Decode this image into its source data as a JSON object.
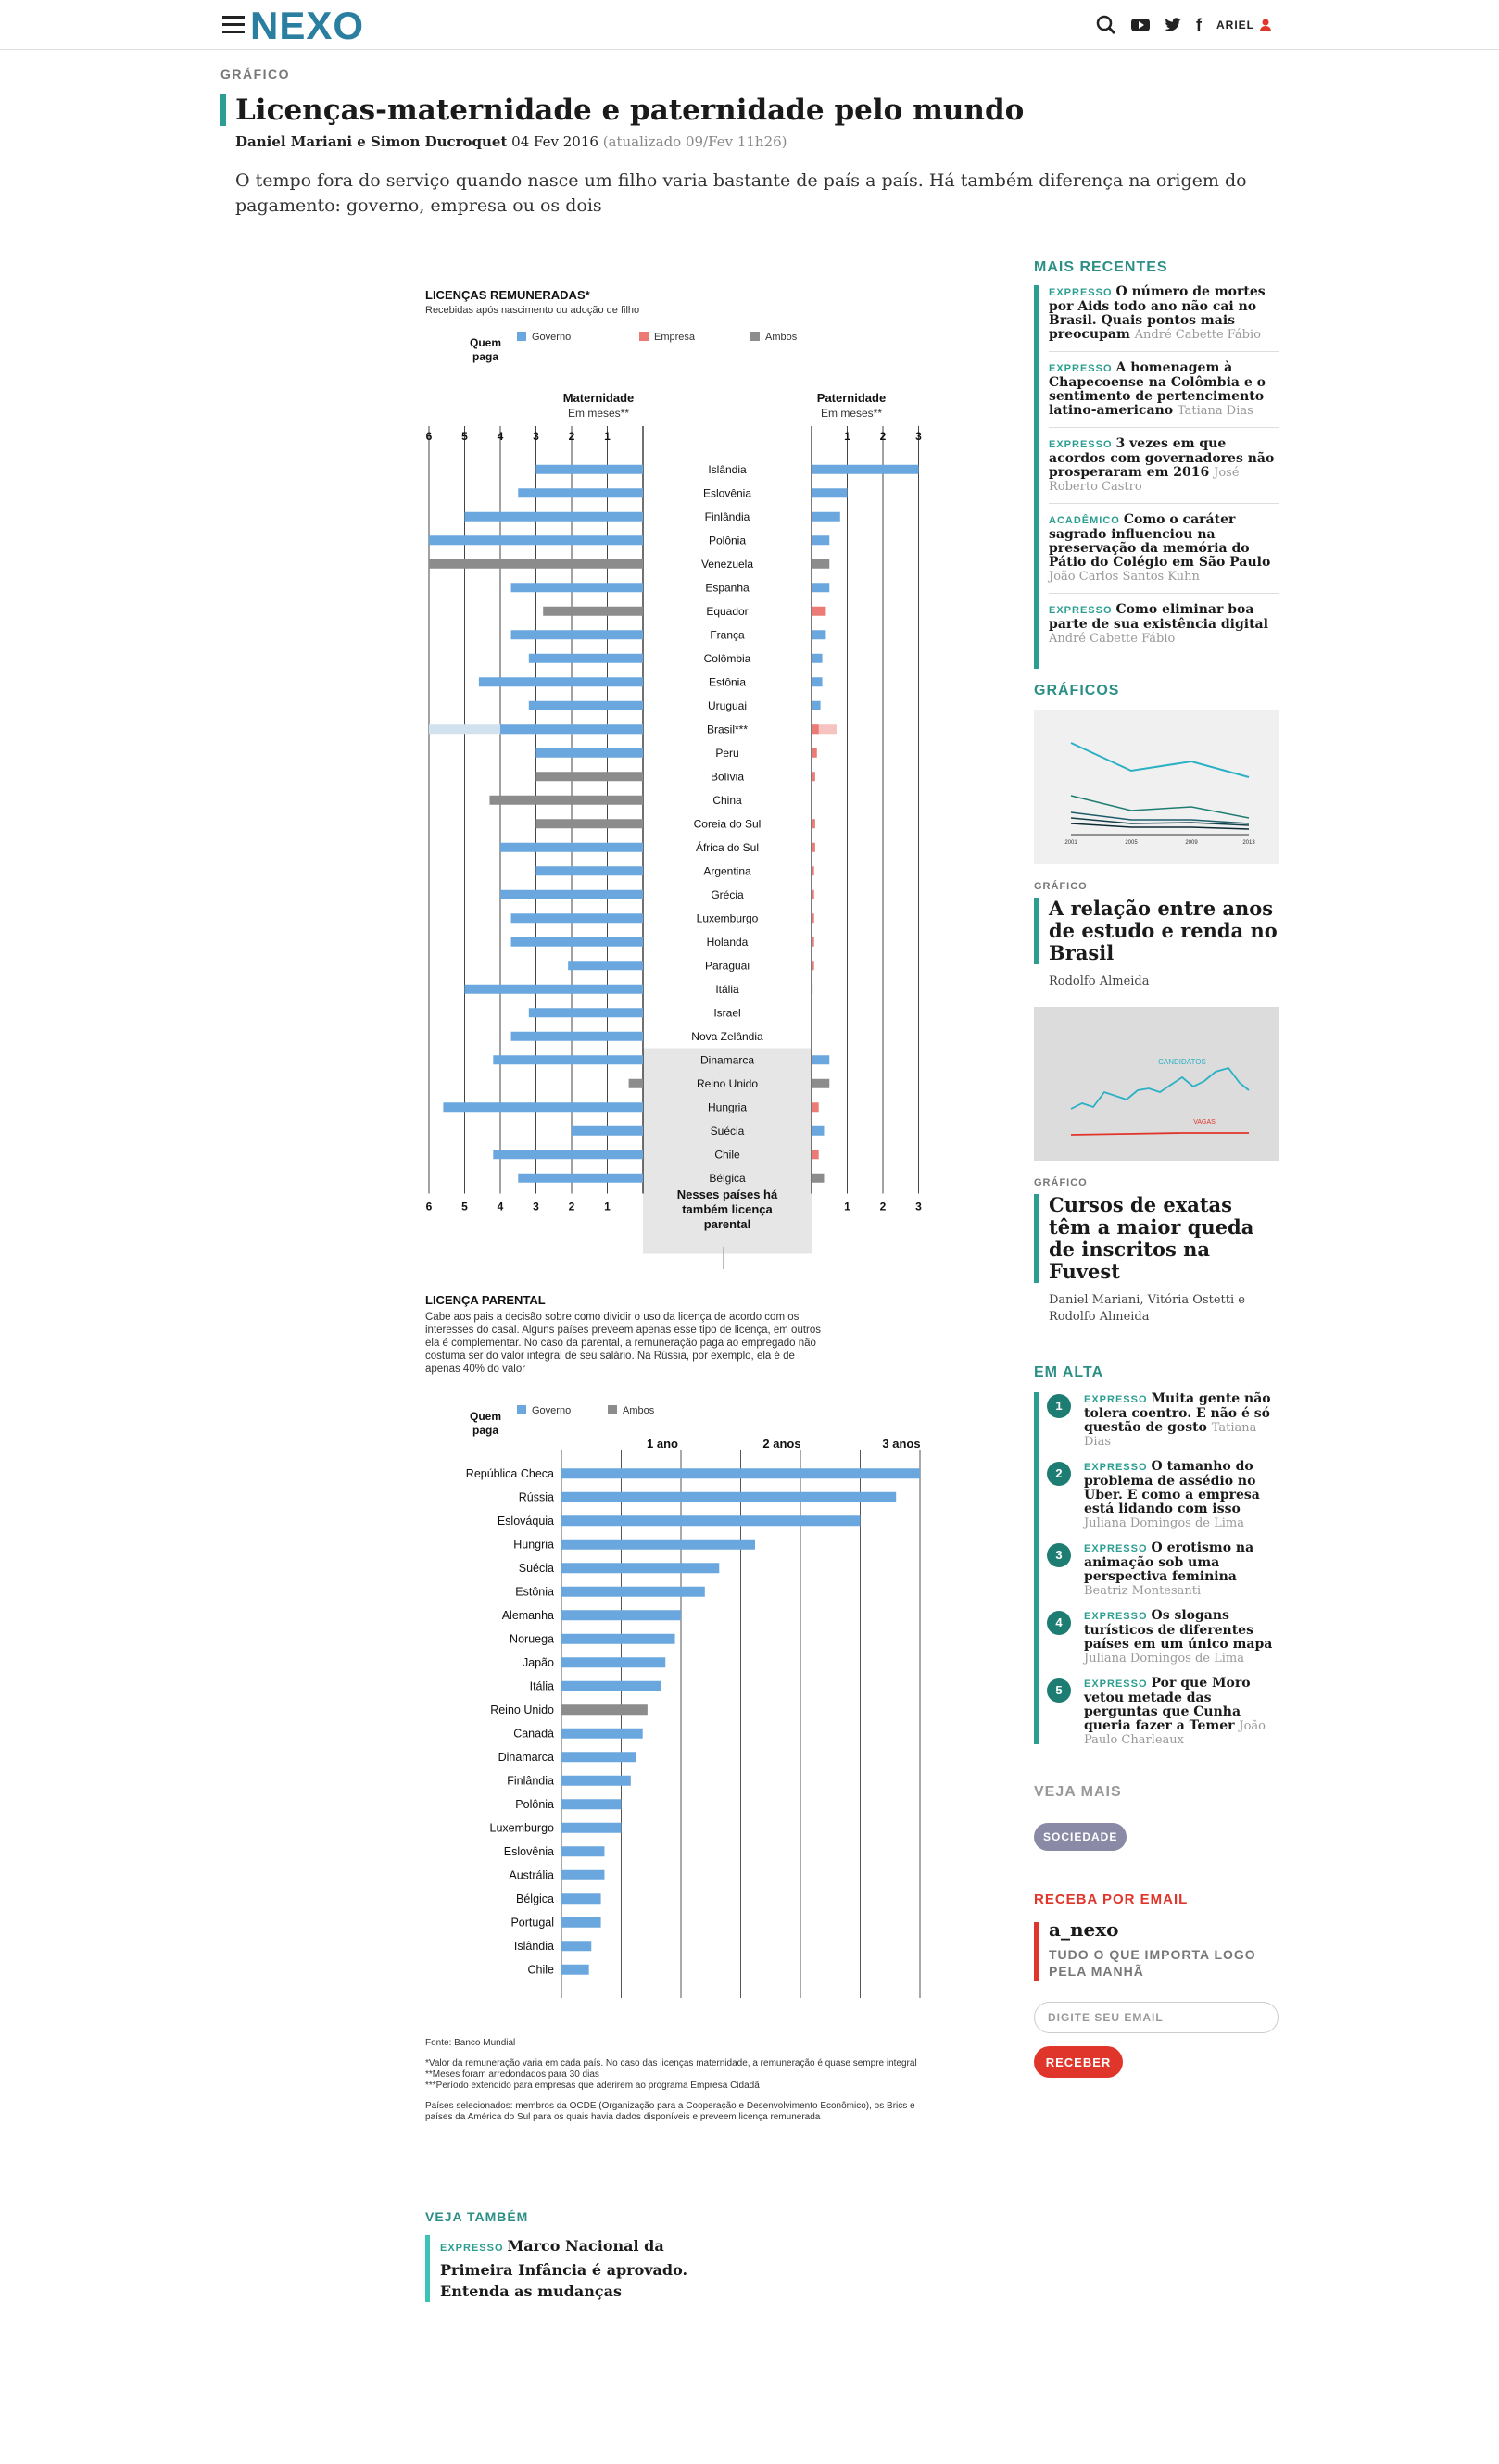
{
  "nav": {
    "logo": "NEXO",
    "user": "ARIEL"
  },
  "article": {
    "kicker": "GRÁFICO",
    "title": "Licenças-maternidade e paternidade pelo mundo",
    "authors": "Daniel Mariani e Simon Ducroquet",
    "date": "04 Fev 2016",
    "updated": "(atualizado 09/Fev 11h26)",
    "lead": "O tempo fora do serviço quando nasce um filho varia bastante de país a país. Há também diferença na origem do pagamento: governo, empresa ou os dois"
  },
  "colors": {
    "governo": "#6aa7de",
    "empresa": "#ec7b76",
    "ambos": "#8c8c8c",
    "brasil_ext_gov": "#d1e2ee",
    "brasil_ext_emp": "#f6c3c0",
    "accent": "#2b9d91",
    "red": "#e0352b"
  },
  "chart_data": [
    {
      "type": "bar",
      "title": "LICENÇAS REMUNERADAS*",
      "subtitle": "Recebidas após nascimento ou adoção de filho",
      "legend_label": "Quem paga",
      "legend": [
        "Governo",
        "Empresa",
        "Ambos"
      ],
      "left_header": "Maternidade",
      "left_unit": "Em meses**",
      "right_header": "Paternidade",
      "right_unit": "Em meses**",
      "xlim_maternidade": [
        0,
        6
      ],
      "xlim_paternidade": [
        0,
        3
      ],
      "ticks_maternidade": [
        "6",
        "5",
        "4",
        "3",
        "2",
        "1"
      ],
      "ticks_paternidade": [
        "1",
        "2",
        "3"
      ],
      "parental_note": "Nesses países há também licença parental",
      "rows": [
        {
          "country": "Islândia",
          "mat": 3,
          "mat_by": "governo",
          "pat": 3,
          "pat_by": "governo"
        },
        {
          "country": "Eslovênia",
          "mat": 3.5,
          "mat_by": "governo",
          "pat": 1,
          "pat_by": "governo"
        },
        {
          "country": "Finlândia",
          "mat": 5,
          "mat_by": "governo",
          "pat": 0.8,
          "pat_by": "governo"
        },
        {
          "country": "Polônia",
          "mat": 6,
          "mat_by": "governo",
          "pat": 0.5,
          "pat_by": "governo"
        },
        {
          "country": "Venezuela",
          "mat": 6,
          "mat_by": "ambos",
          "pat": 0.5,
          "pat_by": "ambos"
        },
        {
          "country": "Espanha",
          "mat": 3.7,
          "mat_by": "governo",
          "pat": 0.5,
          "pat_by": "governo"
        },
        {
          "country": "Equador",
          "mat": 2.8,
          "mat_by": "ambos",
          "pat": 0.4,
          "pat_by": "empresa"
        },
        {
          "country": "França",
          "mat": 3.7,
          "mat_by": "governo",
          "pat": 0.4,
          "pat_by": "governo"
        },
        {
          "country": "Colômbia",
          "mat": 3.2,
          "mat_by": "governo",
          "pat": 0.3,
          "pat_by": "governo"
        },
        {
          "country": "Estônia",
          "mat": 4.6,
          "mat_by": "governo",
          "pat": 0.3,
          "pat_by": "governo"
        },
        {
          "country": "Uruguai",
          "mat": 3.2,
          "mat_by": "governo",
          "pat": 0.25,
          "pat_by": "governo"
        },
        {
          "country": "Brasil***",
          "mat": 4,
          "mat_by": "governo",
          "mat_ext": 6,
          "pat": 0.2,
          "pat_by": "empresa",
          "pat_ext": 0.7
        },
        {
          "country": "Peru",
          "mat": 3,
          "mat_by": "governo",
          "pat": 0.15,
          "pat_by": "empresa"
        },
        {
          "country": "Bolívia",
          "mat": 3,
          "mat_by": "ambos",
          "pat": 0.1,
          "pat_by": "empresa"
        },
        {
          "country": "China",
          "mat": 4.3,
          "mat_by": "ambos",
          "pat": 0,
          "pat_by": "governo"
        },
        {
          "country": "Coreia do Sul",
          "mat": 3,
          "mat_by": "ambos",
          "pat": 0.1,
          "pat_by": "empresa"
        },
        {
          "country": "África do Sul",
          "mat": 4,
          "mat_by": "governo",
          "pat": 0.1,
          "pat_by": "empresa"
        },
        {
          "country": "Argentina",
          "mat": 3,
          "mat_by": "governo",
          "pat": 0.07,
          "pat_by": "empresa"
        },
        {
          "country": "Grécia",
          "mat": 4,
          "mat_by": "governo",
          "pat": 0.07,
          "pat_by": "empresa"
        },
        {
          "country": "Luxemburgo",
          "mat": 3.7,
          "mat_by": "governo",
          "pat": 0.07,
          "pat_by": "empresa"
        },
        {
          "country": "Holanda",
          "mat": 3.7,
          "mat_by": "governo",
          "pat": 0.07,
          "pat_by": "empresa"
        },
        {
          "country": "Paraguai",
          "mat": 2.1,
          "mat_by": "governo",
          "pat": 0.07,
          "pat_by": "empresa"
        },
        {
          "country": "Itália",
          "mat": 5,
          "mat_by": "governo",
          "pat": 0.03,
          "pat_by": "governo"
        },
        {
          "country": "Israel",
          "mat": 3.2,
          "mat_by": "governo",
          "pat": 0,
          "pat_by": "governo"
        },
        {
          "country": "Nova Zelândia",
          "mat": 3.7,
          "mat_by": "governo",
          "pat": 0,
          "pat_by": "governo"
        },
        {
          "country": "Dinamarca",
          "mat": 4.2,
          "mat_by": "governo",
          "pat": 0.5,
          "pat_by": "governo"
        },
        {
          "country": "Reino Unido",
          "mat": 0.4,
          "mat_by": "ambos",
          "pat": 0.5,
          "pat_by": "ambos"
        },
        {
          "country": "Hungria",
          "mat": 5.6,
          "mat_by": "governo",
          "pat": 0.2,
          "pat_by": "empresa"
        },
        {
          "country": "Suécia",
          "mat": 2,
          "mat_by": "governo",
          "pat": 0.35,
          "pat_by": "governo"
        },
        {
          "country": "Chile",
          "mat": 4.2,
          "mat_by": "governo",
          "pat": 0.2,
          "pat_by": "empresa"
        },
        {
          "country": "Bélgica",
          "mat": 3.5,
          "mat_by": "governo",
          "pat": 0.35,
          "pat_by": "ambos"
        }
      ],
      "parental_countries": [
        "Dinamarca",
        "Reino Unido",
        "Hungria",
        "Suécia",
        "Chile",
        "Bélgica"
      ]
    },
    {
      "type": "bar",
      "title": "LICENÇA PARENTAL",
      "description": "Cabe aos pais a decisão sobre como dividir o uso da licença de acordo com os interesses do casal. Alguns países preveem apenas esse tipo de licença, em outros ela é complementar. No caso da parental, a remuneração paga ao empregado não costuma ser do valor integral de seu salário. Na Rússia, por exemplo, ela é de apenas 40% do valor",
      "legend_label": "Quem paga",
      "legend": [
        "Governo",
        "Ambos"
      ],
      "ticks": [
        "1 ano",
        "2 anos",
        "3 anos"
      ],
      "xlim_years": [
        0,
        3
      ],
      "rows": [
        {
          "country": "República Checa",
          "years": 3,
          "by": "governo"
        },
        {
          "country": "Rússia",
          "years": 2.8,
          "by": "governo"
        },
        {
          "country": "Eslováquia",
          "years": 2.5,
          "by": "governo"
        },
        {
          "country": "Hungria",
          "years": 1.62,
          "by": "governo"
        },
        {
          "country": "Suécia",
          "years": 1.32,
          "by": "governo"
        },
        {
          "country": "Estônia",
          "years": 1.2,
          "by": "governo"
        },
        {
          "country": "Alemanha",
          "years": 1,
          "by": "governo"
        },
        {
          "country": "Noruega",
          "years": 0.95,
          "by": "governo"
        },
        {
          "country": "Japão",
          "years": 0.87,
          "by": "governo"
        },
        {
          "country": "Itália",
          "years": 0.83,
          "by": "governo"
        },
        {
          "country": "Reino Unido",
          "years": 0.72,
          "by": "ambos"
        },
        {
          "country": "Canadá",
          "years": 0.68,
          "by": "governo"
        },
        {
          "country": "Dinamarca",
          "years": 0.62,
          "by": "governo"
        },
        {
          "country": "Finlândia",
          "years": 0.58,
          "by": "governo"
        },
        {
          "country": "Polônia",
          "years": 0.5,
          "by": "governo"
        },
        {
          "country": "Luxemburgo",
          "years": 0.5,
          "by": "governo"
        },
        {
          "country": "Eslovênia",
          "years": 0.36,
          "by": "governo"
        },
        {
          "country": "Austrália",
          "years": 0.36,
          "by": "governo"
        },
        {
          "country": "Bélgica",
          "years": 0.33,
          "by": "governo"
        },
        {
          "country": "Portugal",
          "years": 0.33,
          "by": "governo"
        },
        {
          "country": "Islândia",
          "years": 0.25,
          "by": "governo"
        },
        {
          "country": "Chile",
          "years": 0.23,
          "by": "governo"
        }
      ]
    }
  ],
  "notes": {
    "fonte": "Fonte: Banco Mundial",
    "n1": "*Valor da remuneração varia em cada país. No caso das licenças maternidade, a remuneração é quase sempre integral **Meses foram arredondados para 30 dias",
    "n2": "***Período extendido para empresas que aderirem ao programa Empresa Cidadã",
    "n3": "Países selecionados: membros da OCDE (Organização para a Cooperação e Desenvolvimento Econômico), os Brics e países da América do Sul para os quais havia dados disponíveis e preveem licença remunerada"
  },
  "veja_tambem": {
    "heading": "VEJA TAMBÉM",
    "tag": "EXPRESSO",
    "title": "Marco Nacional da Primeira Infância é aprovado. Entenda as mudanças"
  },
  "sidebar": {
    "recentes_heading": "MAIS RECENTES",
    "recentes": [
      {
        "tag": "EXPRESSO",
        "title": "O número de mortes por Aids todo ano não cai no Brasil. Quais pontos mais preocupam",
        "author": "André Cabette Fábio"
      },
      {
        "tag": "EXPRESSO",
        "title": "A homenagem à Chapecoense na Colômbia e o sentimento de pertencimento latino-americano",
        "author": "Tatiana Dias"
      },
      {
        "tag": "EXPRESSO",
        "title": "3 vezes em que acordos com governadores não prosperaram em 2016",
        "author": "José Roberto Castro"
      },
      {
        "tag": "ACADÊMICO",
        "title": "Como o caráter sagrado influenciou na preservação da memória do Pátio do Colégio em São Paulo",
        "author": "João Carlos Santos Kuhn"
      },
      {
        "tag": "EXPRESSO",
        "title": "Como eliminar boa parte de sua existência digital",
        "author": "André Cabette Fábio"
      }
    ],
    "graficos_heading": "GRÁFICOS",
    "graficos": [
      {
        "label": "GRÁFICO",
        "title": "A relação entre anos de estudo e renda no Brasil",
        "author": "Rodolfo Almeida",
        "thumb_ticks": [
          "2001",
          "2005",
          "2009",
          "2013"
        ]
      },
      {
        "label": "GRÁFICO",
        "title": "Cursos de exatas têm a maior queda de inscritos na Fuvest",
        "author": "Daniel Mariani, Vitória Ostetti e Rodolfo Almeida",
        "thumb_labels": [
          "CANDIDATOS",
          "VAGAS"
        ]
      }
    ],
    "alta_heading": "EM ALTA",
    "alta": [
      {
        "num": "1",
        "tag": "EXPRESSO",
        "title": "Muita gente não tolera coentro. E não é só questão de gosto",
        "author": "Tatiana Dias"
      },
      {
        "num": "2",
        "tag": "EXPRESSO",
        "title": "O tamanho do problema de assédio no Uber. E como a empresa está lidando com isso",
        "author": "Juliana Domingos de Lima"
      },
      {
        "num": "3",
        "tag": "EXPRESSO",
        "title": "O erotismo na animação sob uma perspectiva feminina",
        "author": "Beatriz Montesanti"
      },
      {
        "num": "4",
        "tag": "EXPRESSO",
        "title": "Os slogans turísticos de diferentes países em um único mapa",
        "author": "Juliana Domingos de Lima"
      },
      {
        "num": "5",
        "tag": "EXPRESSO",
        "title": "Por que Moro vetou metade das perguntas que Cunha queria fazer a Temer",
        "author": "João Paulo Charleaux"
      }
    ],
    "veja_mais_heading": "VEJA MAIS",
    "veja_mais_pill": "SOCIEDADE",
    "email_heading": "RECEBA POR EMAIL",
    "newsletter_name": "a_nexo",
    "newsletter_tagline": "TUDO O QUE IMPORTA LOGO PELA MANHÃ",
    "email_placeholder": "DIGITE SEU EMAIL",
    "email_button": "RECEBER"
  }
}
